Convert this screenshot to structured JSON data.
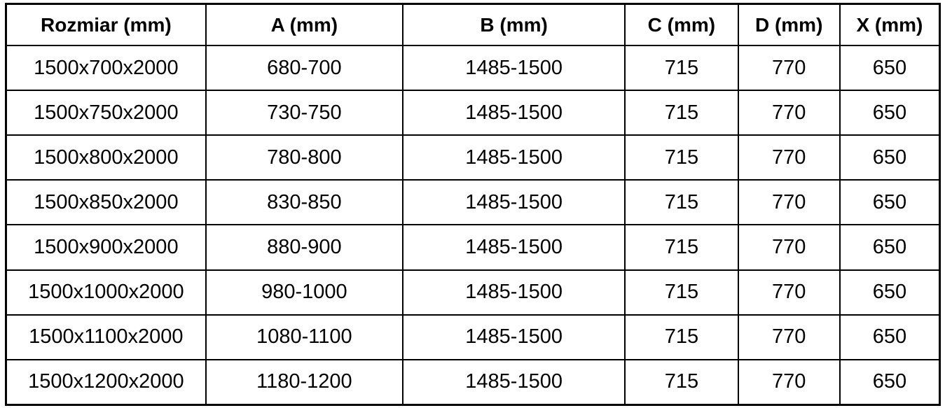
{
  "table": {
    "columns": [
      "Rozmiar (mm)",
      "A (mm)",
      "B (mm)",
      "C (mm)",
      "D (mm)",
      "X (mm)"
    ],
    "rows": [
      [
        "1500x700x2000",
        "680-700",
        "1485-1500",
        "715",
        "770",
        "650"
      ],
      [
        "1500x750x2000",
        "730-750",
        "1485-1500",
        "715",
        "770",
        "650"
      ],
      [
        "1500x800x2000",
        "780-800",
        "1485-1500",
        "715",
        "770",
        "650"
      ],
      [
        "1500x850x2000",
        "830-850",
        "1485-1500",
        "715",
        "770",
        "650"
      ],
      [
        "1500x900x2000",
        "880-900",
        "1485-1500",
        "715",
        "770",
        "650"
      ],
      [
        "1500x1000x2000",
        "980-1000",
        "1485-1500",
        "715",
        "770",
        "650"
      ],
      [
        "1500x1100x2000",
        "1080-1100",
        "1485-1500",
        "715",
        "770",
        "650"
      ],
      [
        "1500x1200x2000",
        "1180-1200",
        "1485-1500",
        "715",
        "770",
        "650"
      ]
    ]
  },
  "colors": {
    "border": "#000000",
    "text": "#000000",
    "background": "#ffffff"
  }
}
